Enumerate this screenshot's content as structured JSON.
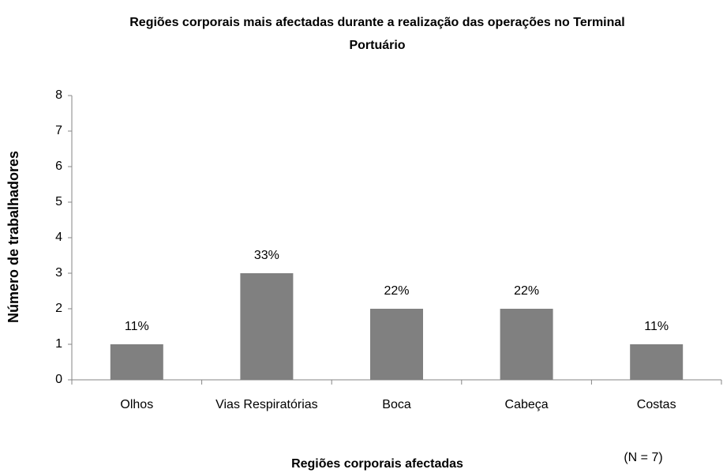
{
  "chart_data": {
    "type": "bar",
    "title": "Regiões corporais mais afectadas durante a realização das operações no Terminal Portuário",
    "x_label": "Regiões corporais afectadas",
    "y_label": "Número de trabalhadores",
    "annotation": "(N = 7)",
    "categories": [
      "Olhos",
      "Vias Respiratórias",
      "Boca",
      "Cabeça",
      "Costas"
    ],
    "values": [
      1,
      3,
      2,
      2,
      1
    ],
    "value_labels": [
      "11%",
      "33%",
      "22%",
      "22%",
      "11%"
    ],
    "color": "#808080",
    "ylim": [
      0,
      8
    ],
    "yticks": [
      0,
      1,
      2,
      3,
      4,
      5,
      6,
      7,
      8
    ],
    "grid": false
  }
}
